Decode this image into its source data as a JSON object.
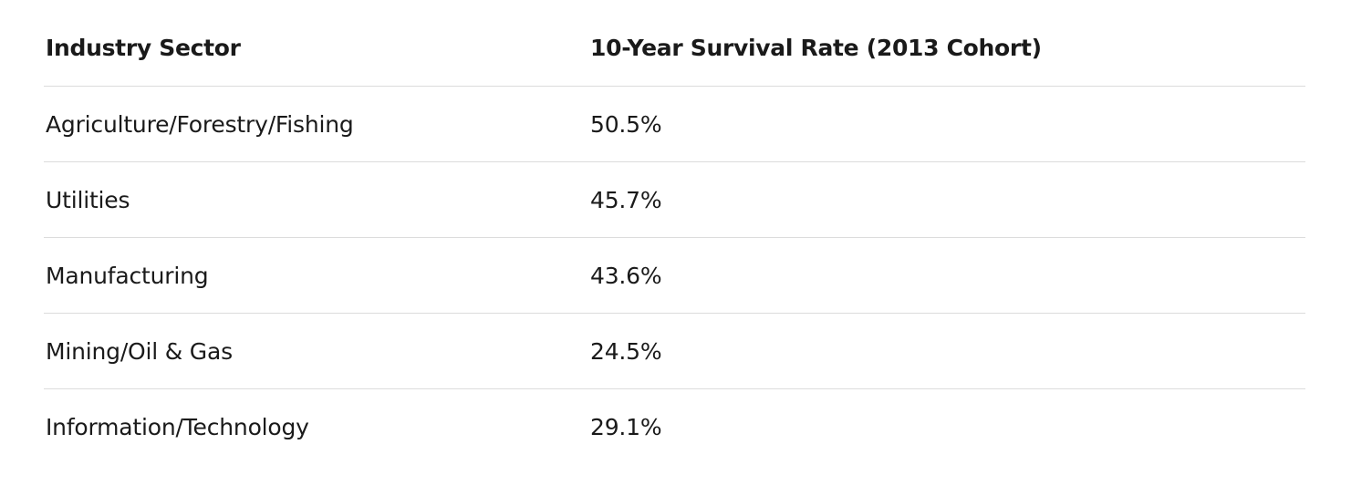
{
  "table": {
    "headers": [
      "Industry Sector",
      "10-Year Survival Rate (2013 Cohort)"
    ],
    "rows": [
      [
        "Agriculture/Forestry/Fishing",
        "50.5%"
      ],
      [
        "Utilities",
        "45.7%"
      ],
      [
        "Manufacturing",
        "43.6%"
      ],
      [
        "Mining/Oil & Gas",
        "24.5%"
      ],
      [
        "Information/Technology",
        "29.1%"
      ]
    ]
  }
}
